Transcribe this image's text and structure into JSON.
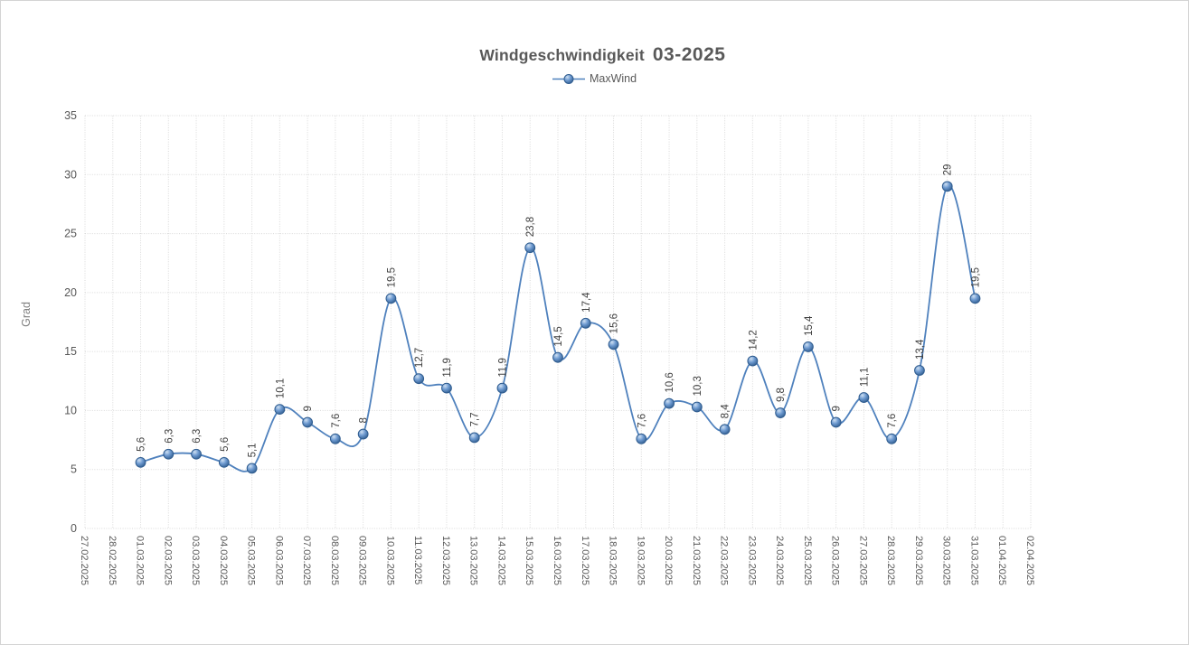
{
  "header": {
    "title_main": "Windgeschwindigkeit",
    "title_period": "03-2025",
    "title_full": "Windgeschwindigkeit  03-2025"
  },
  "legend": {
    "label": "MaxWind",
    "position": "top-center",
    "marker_icon": "line-with-sphere-marker"
  },
  "axes": {
    "y_title": "Grad",
    "y_tick_labels": [
      "0",
      "5",
      "10",
      "15",
      "20",
      "25",
      "30",
      "35"
    ],
    "x_tick_rotation_deg": 90,
    "data_label_rotation_deg": -90
  },
  "colors": {
    "line": "#4f81bd",
    "marker_stroke": "#2f5c8f",
    "marker_light": "#cfe0f2",
    "marker_mid": "#6f9bd1",
    "marker_dark": "#2d5a8c",
    "gridline": "#d9d9d9",
    "axis_text": "#595959",
    "data_label_text": "#3f3f3f",
    "title_text": "#595959"
  },
  "chart_data": {
    "type": "line",
    "smooth": true,
    "grid": true,
    "title": "Windgeschwindigkeit 03-2025",
    "xlabel": "",
    "ylabel": "Grad",
    "ylim": [
      0,
      35
    ],
    "y_ticks": [
      0,
      5,
      10,
      15,
      20,
      25,
      30,
      35
    ],
    "legend_position": "top",
    "categories": [
      "27.02.2025",
      "28.02.2025",
      "01.03.2025",
      "02.03.2025",
      "03.03.2025",
      "04.03.2025",
      "05.03.2025",
      "06.03.2025",
      "07.03.2025",
      "08.03.2025",
      "09.03.2025",
      "10.03.2025",
      "11.03.2025",
      "12.03.2025",
      "13.03.2025",
      "14.03.2025",
      "15.03.2025",
      "16.03.2025",
      "17.03.2025",
      "18.03.2025",
      "19.03.2025",
      "20.03.2025",
      "21.03.2025",
      "22.03.2025",
      "23.03.2025",
      "24.03.2025",
      "25.03.2025",
      "26.03.2025",
      "27.03.2025",
      "28.03.2025",
      "29.03.2025",
      "30.03.2025",
      "31.03.2025",
      "01.04.2025",
      "02.04.2025"
    ],
    "series": [
      {
        "name": "MaxWind",
        "color": "#4f81bd",
        "values": [
          null,
          null,
          5.6,
          6.3,
          6.3,
          5.6,
          5.1,
          10.1,
          9,
          7.6,
          8,
          19.5,
          12.7,
          11.9,
          7.7,
          11.9,
          23.8,
          14.5,
          17.4,
          15.6,
          7.6,
          10.6,
          10.3,
          8.4,
          14.2,
          9.8,
          15.4,
          9,
          11.1,
          7.6,
          13.4,
          29,
          19.5,
          null,
          null
        ],
        "labels": [
          null,
          null,
          "5,6",
          "6,3",
          "6,3",
          "5,6",
          "5,1",
          "10,1",
          "9",
          "7,6",
          "8",
          "19,5",
          "12,7",
          "11,9",
          "7,7",
          "11,9",
          "23,8",
          "14,5",
          "17,4",
          "15,6",
          "7,6",
          "10,6",
          "10,3",
          "8,4",
          "14,2",
          "9,8",
          "15,4",
          "9",
          "11,1",
          "7,6",
          "13,4",
          "29",
          "19,5",
          null,
          null
        ]
      }
    ]
  }
}
